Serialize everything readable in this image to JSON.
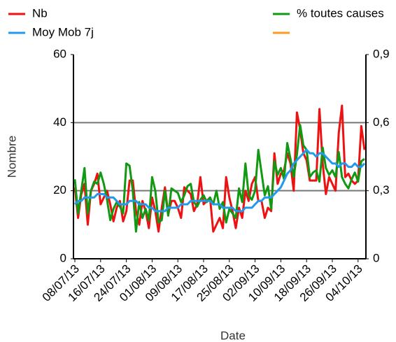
{
  "chart_data": {
    "type": "line",
    "x_label": "Date",
    "y_label": "Nombre",
    "categories": [
      "08/07/13",
      null,
      null,
      null,
      null,
      null,
      null,
      null,
      "16/07/13",
      null,
      null,
      null,
      null,
      null,
      null,
      null,
      "24/07/13",
      null,
      null,
      null,
      null,
      null,
      null,
      null,
      "01/08/13",
      null,
      null,
      null,
      null,
      null,
      null,
      null,
      "09/08/13",
      null,
      null,
      null,
      null,
      null,
      null,
      null,
      "17/08/13",
      null,
      null,
      null,
      null,
      null,
      null,
      null,
      "25/08/13",
      null,
      null,
      null,
      null,
      null,
      null,
      null,
      "02/09/13",
      null,
      null,
      null,
      null,
      null,
      null,
      null,
      "10/09/13",
      null,
      null,
      null,
      null,
      null,
      null,
      null,
      "18/09/13",
      null,
      null,
      null,
      null,
      null,
      null,
      null,
      "26/09/13",
      null,
      null,
      null,
      null,
      null,
      null,
      null,
      "04/10/13",
      null,
      null
    ],
    "ylim": [
      0,
      60
    ],
    "yticks": [
      0,
      20,
      40,
      60
    ],
    "y2lim": [
      0,
      0.9
    ],
    "y2ticks": [
      0,
      {
        "value": 0.3,
        "label": "0,3"
      },
      {
        "value": 0.6,
        "label": "0,6"
      },
      {
        "value": 0.9,
        "label": "0,9"
      }
    ],
    "grid_values": [
      20,
      40
    ],
    "series": [
      {
        "name": "Nb",
        "color": "#ee1111",
        "values": [
          21,
          12,
          19,
          22,
          10,
          20,
          22,
          25,
          16,
          18,
          20,
          16,
          11,
          15,
          17,
          11,
          14,
          23,
          23,
          14,
          10,
          17,
          14,
          9,
          18,
          14,
          8,
          15,
          21,
          13,
          17,
          17,
          15,
          12,
          21,
          20,
          19,
          14,
          16,
          24,
          16,
          17,
          18,
          8,
          10,
          12,
          9,
          24,
          18,
          14,
          9,
          15,
          12,
          20,
          17,
          22,
          24,
          17,
          17,
          12,
          15,
          14,
          31,
          22,
          25,
          26,
          31,
          28,
          20,
          43,
          38,
          31,
          29,
          23,
          23,
          23,
          44,
          28,
          19,
          24,
          22,
          20,
          37,
          45,
          24,
          25,
          23,
          22,
          23,
          39,
          32
        ]
      },
      {
        "name": "Moy Mob 7j",
        "color": "#2299ee",
        "values": [
          16,
          17,
          17,
          18,
          18,
          18,
          18,
          19,
          19,
          19,
          18,
          18,
          18,
          17,
          16,
          16,
          16,
          17,
          17,
          17,
          16,
          16,
          16,
          15,
          15,
          14,
          14,
          14,
          14,
          15,
          15,
          15,
          15,
          16,
          16,
          16,
          17,
          17,
          17,
          17,
          17,
          17,
          17,
          16,
          16,
          16,
          15,
          15,
          15,
          15,
          14,
          14,
          14,
          15,
          15,
          15,
          16,
          17,
          17,
          18,
          18,
          18,
          19,
          20,
          21,
          23,
          25,
          26,
          28,
          29,
          30,
          31,
          32,
          31,
          31,
          30,
          31,
          31,
          30,
          29,
          28,
          28,
          27,
          28,
          28,
          27,
          27,
          28,
          27,
          27,
          28
        ]
      },
      {
        "name": "% toutes causes",
        "color": "#119911",
        "axis": "y2",
        "values": [
          0.35,
          0.2,
          0.3,
          0.4,
          0.2,
          0.3,
          0.34,
          0.33,
          0.38,
          0.33,
          0.26,
          0.17,
          0.22,
          0.25,
          0.23,
          0.2,
          0.42,
          0.41,
          0.3,
          0.12,
          0.25,
          0.18,
          0.22,
          0.17,
          0.36,
          0.3,
          0.16,
          0.17,
          0.3,
          0.19,
          0.31,
          0.3,
          0.29,
          0.25,
          0.28,
          0.32,
          0.33,
          0.25,
          0.23,
          0.26,
          0.28,
          0.25,
          0.27,
          0.24,
          0.3,
          0.22,
          0.25,
          0.16,
          0.22,
          0.2,
          0.18,
          0.31,
          0.25,
          0.42,
          0.28,
          0.26,
          0.3,
          0.48,
          0.38,
          0.28,
          0.32,
          0.22,
          0.43,
          0.37,
          0.4,
          0.35,
          0.51,
          0.44,
          0.36,
          0.46,
          0.59,
          0.5,
          0.48,
          0.36,
          0.38,
          0.39,
          0.34,
          0.49,
          0.4,
          0.37,
          0.39,
          0.36,
          0.47,
          0.36,
          0.33,
          0.31,
          0.35,
          0.38,
          0.34,
          0.43,
          0.44
        ]
      },
      {
        "name": null,
        "color": "#ff9922",
        "axis": "y2",
        "values": [
          null,
          null,
          null,
          null,
          null,
          null,
          null,
          null,
          null,
          null,
          null,
          null,
          null,
          null,
          null,
          null,
          null,
          null,
          null,
          null,
          null,
          null,
          null,
          null,
          null,
          null,
          null,
          null,
          null,
          null,
          null,
          null,
          null,
          null,
          null,
          null,
          null,
          null,
          null,
          null,
          null,
          null,
          null,
          null,
          null,
          null,
          null,
          null,
          null,
          null,
          null,
          null,
          null,
          null,
          null,
          null,
          null,
          null,
          null,
          null,
          null,
          null,
          null,
          null,
          null,
          null,
          null,
          null,
          null,
          null,
          null,
          null,
          null,
          null,
          null,
          null,
          null,
          null,
          null,
          null,
          null,
          null,
          null,
          null,
          null,
          null,
          null,
          null,
          null,
          null,
          null
        ]
      }
    ]
  }
}
